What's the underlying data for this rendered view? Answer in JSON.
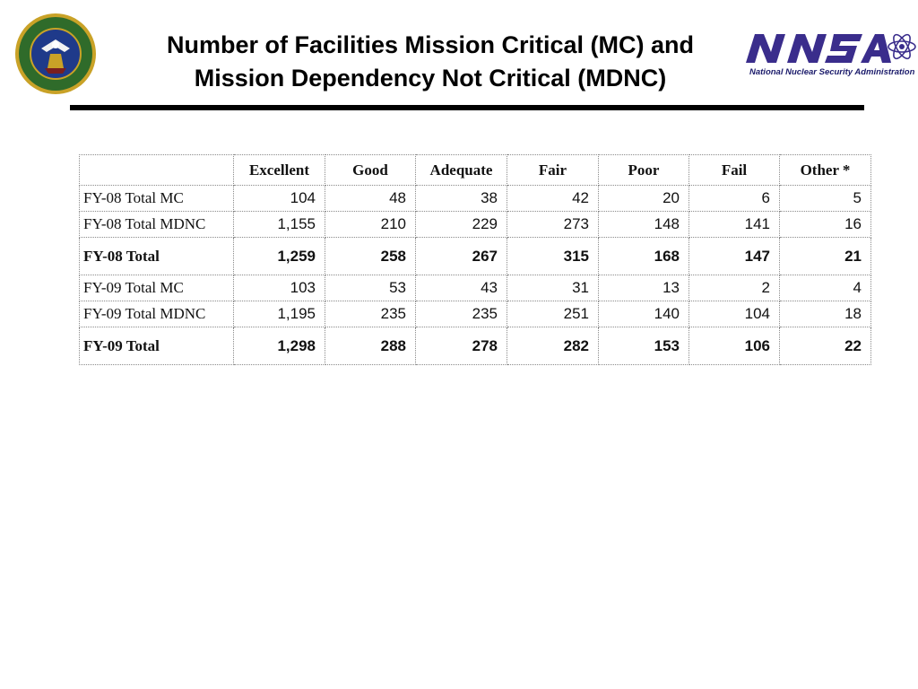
{
  "header": {
    "title_line1": "Number of Facilities Mission Critical (MC) and",
    "title_line2": "Mission Dependency Not Critical (MDNC)",
    "left_logo": "department-of-energy-seal",
    "right_logo": {
      "wordmark": "NNSA",
      "caption": "National Nuclear Security Administration"
    }
  },
  "colors": {
    "rule": "#000000",
    "nnsa_purple": "#3a2d8c",
    "seal_blue": "#1f3a8a",
    "seal_green": "#2f6b2a",
    "seal_gold": "#c9a227"
  },
  "table": {
    "columns": [
      "",
      "Excellent",
      "Good",
      "Adequate",
      "Fair",
      "Poor",
      "Fail",
      "Other *"
    ],
    "rows": [
      {
        "label": "FY-08 Total MC",
        "values": [
          "104",
          "48",
          "38",
          "42",
          "20",
          "6",
          "5"
        ],
        "bold": false
      },
      {
        "label": "FY-08 Total MDNC",
        "values": [
          "1,155",
          "210",
          "229",
          "273",
          "148",
          "141",
          "16"
        ],
        "bold": false
      },
      {
        "label": "FY-08 Total",
        "values": [
          "1,259",
          "258",
          "267",
          "315",
          "168",
          "147",
          "21"
        ],
        "bold": true
      },
      {
        "label": "FY-09 Total MC",
        "values": [
          "103",
          "53",
          "43",
          "31",
          "13",
          "2",
          "4"
        ],
        "bold": false
      },
      {
        "label": "FY-09 Total MDNC",
        "values": [
          "1,195",
          "235",
          "235",
          "251",
          "140",
          "104",
          "18"
        ],
        "bold": false
      },
      {
        "label": "FY-09 Total",
        "values": [
          "1,298",
          "288",
          "278",
          "282",
          "153",
          "106",
          "22"
        ],
        "bold": true
      }
    ]
  }
}
